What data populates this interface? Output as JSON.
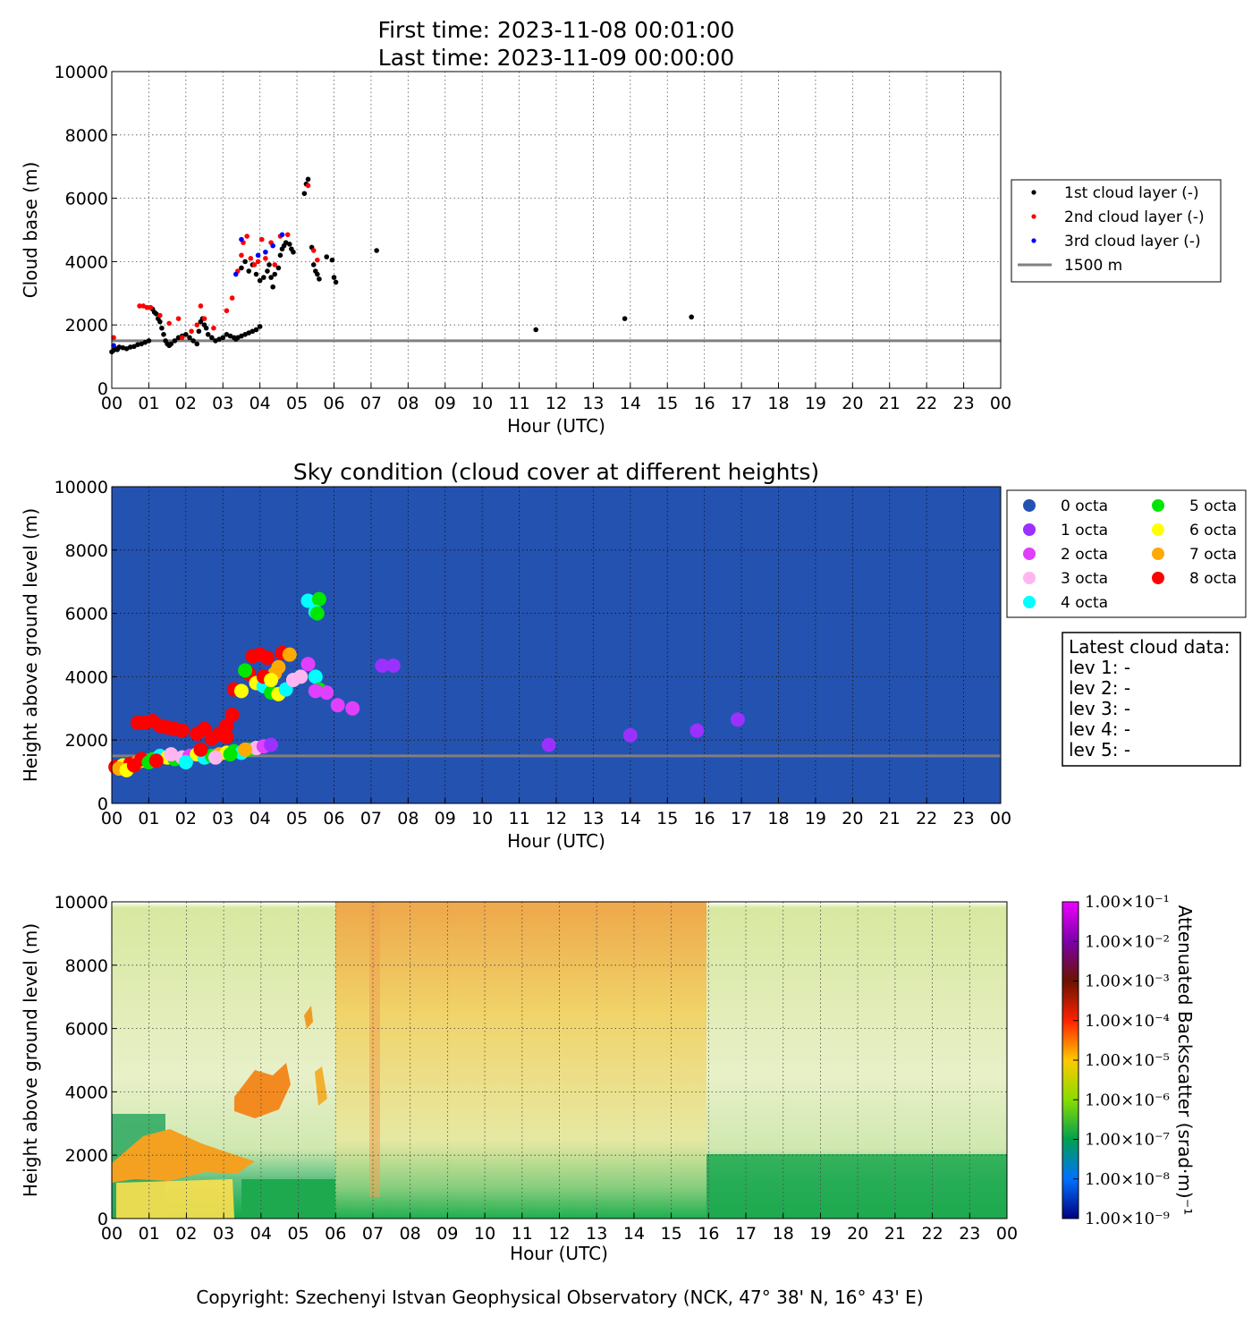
{
  "header": {
    "first_time": "First time: 2023-11-08 00:01:00",
    "last_time": "Last time: 2023-11-09 00:00:00"
  },
  "copyright": "Copyright: Szechenyi Istvan Geophysical Observatory (NCK, 47° 38' N, 16° 43' E)",
  "colors": {
    "layer1": "#000000",
    "layer2": "#ff0000",
    "layer3": "#0000ff",
    "ref_line": "#808080",
    "sky_bg": "#2452b0",
    "octa": [
      "#2452b0",
      "#9b30ff",
      "#e040fb",
      "#ffb6f0",
      "#00ffff",
      "#00e600",
      "#ffff00",
      "#ffaa00",
      "#ff0000"
    ]
  },
  "chart_data": [
    {
      "type": "scatter",
      "title": "",
      "xlabel": "Hour (UTC)",
      "ylabel": "Cloud base (m)",
      "xlim": [
        0,
        24
      ],
      "ylim": [
        0,
        10000
      ],
      "x_ticks": [
        "00",
        "01",
        "02",
        "03",
        "04",
        "05",
        "06",
        "07",
        "08",
        "09",
        "10",
        "11",
        "12",
        "13",
        "14",
        "15",
        "16",
        "17",
        "18",
        "19",
        "20",
        "21",
        "22",
        "23",
        "00"
      ],
      "y_ticks": [
        0,
        2000,
        4000,
        6000,
        8000,
        10000
      ],
      "grid": true,
      "legend_position": "outside-right",
      "reference_line": {
        "name": "1500 m",
        "y": 1500
      },
      "series": [
        {
          "name": "1st cloud layer (-)",
          "points": [
            [
              0.0,
              1150
            ],
            [
              0.05,
              1200
            ],
            [
              0.1,
              1250
            ],
            [
              0.15,
              1220
            ],
            [
              0.2,
              1300
            ],
            [
              0.3,
              1280
            ],
            [
              0.4,
              1250
            ],
            [
              0.5,
              1300
            ],
            [
              0.6,
              1320
            ],
            [
              0.7,
              1380
            ],
            [
              0.8,
              1400
            ],
            [
              0.9,
              1450
            ],
            [
              1.0,
              1500
            ],
            [
              1.1,
              2500
            ],
            [
              1.15,
              2400
            ],
            [
              1.2,
              2350
            ],
            [
              1.25,
              2200
            ],
            [
              1.3,
              2100
            ],
            [
              1.35,
              1900
            ],
            [
              1.4,
              1700
            ],
            [
              1.45,
              1500
            ],
            [
              1.5,
              1400
            ],
            [
              1.55,
              1350
            ],
            [
              1.6,
              1400
            ],
            [
              1.7,
              1500
            ],
            [
              1.8,
              1600
            ],
            [
              1.9,
              1650
            ],
            [
              2.0,
              1700
            ],
            [
              2.1,
              1600
            ],
            [
              2.2,
              1500
            ],
            [
              2.3,
              1400
            ],
            [
              2.35,
              1800
            ],
            [
              2.4,
              2100
            ],
            [
              2.45,
              2200
            ],
            [
              2.5,
              2000
            ],
            [
              2.55,
              1900
            ],
            [
              2.6,
              1700
            ],
            [
              2.7,
              1600
            ],
            [
              2.8,
              1500
            ],
            [
              2.9,
              1550
            ],
            [
              3.0,
              1600
            ],
            [
              3.1,
              1700
            ],
            [
              3.2,
              1650
            ],
            [
              3.3,
              1600
            ],
            [
              3.35,
              1550
            ],
            [
              3.4,
              1600
            ],
            [
              3.5,
              1650
            ],
            [
              3.6,
              1700
            ],
            [
              3.7,
              1750
            ],
            [
              3.8,
              1800
            ],
            [
              3.9,
              1850
            ],
            [
              4.0,
              1950
            ],
            [
              3.5,
              3800
            ],
            [
              3.6,
              4000
            ],
            [
              3.7,
              3700
            ],
            [
              3.8,
              3900
            ],
            [
              3.9,
              3600
            ],
            [
              4.0,
              3400
            ],
            [
              4.1,
              3500
            ],
            [
              4.2,
              3700
            ],
            [
              4.25,
              3900
            ],
            [
              4.3,
              3500
            ],
            [
              4.35,
              3200
            ],
            [
              4.4,
              3600
            ],
            [
              4.5,
              3800
            ],
            [
              4.55,
              4200
            ],
            [
              4.6,
              4400
            ],
            [
              4.65,
              4500
            ],
            [
              4.7,
              4600
            ],
            [
              4.8,
              4550
            ],
            [
              4.85,
              4400
            ],
            [
              4.9,
              4300
            ],
            [
              5.2,
              6150
            ],
            [
              5.25,
              6450
            ],
            [
              5.3,
              6600
            ],
            [
              5.4,
              4450
            ],
            [
              5.45,
              3900
            ],
            [
              5.5,
              3700
            ],
            [
              5.55,
              3600
            ],
            [
              5.6,
              3450
            ],
            [
              5.8,
              4150
            ],
            [
              5.95,
              4050
            ],
            [
              6.0,
              3500
            ],
            [
              6.05,
              3350
            ],
            [
              7.15,
              4350
            ],
            [
              11.45,
              1850
            ],
            [
              13.85,
              2200
            ],
            [
              15.65,
              2250
            ]
          ]
        },
        {
          "name": "2nd cloud layer (-)",
          "points": [
            [
              0.05,
              1600
            ],
            [
              0.75,
              2600
            ],
            [
              0.85,
              2600
            ],
            [
              0.95,
              2550
            ],
            [
              1.05,
              2550
            ],
            [
              1.3,
              2300
            ],
            [
              1.55,
              2050
            ],
            [
              1.8,
              2200
            ],
            [
              1.9,
              1600
            ],
            [
              2.15,
              1800
            ],
            [
              2.3,
              2000
            ],
            [
              2.4,
              2600
            ],
            [
              2.5,
              2200
            ],
            [
              2.75,
              1900
            ],
            [
              3.1,
              2450
            ],
            [
              3.25,
              2850
            ],
            [
              3.4,
              3700
            ],
            [
              3.5,
              4200
            ],
            [
              3.55,
              4600
            ],
            [
              3.65,
              4800
            ],
            [
              3.75,
              4100
            ],
            [
              3.85,
              3900
            ],
            [
              3.95,
              4000
            ],
            [
              4.05,
              4700
            ],
            [
              4.15,
              4100
            ],
            [
              4.3,
              4600
            ],
            [
              4.4,
              3900
            ],
            [
              4.55,
              4800
            ],
            [
              4.75,
              4850
            ],
            [
              5.3,
              6400
            ],
            [
              5.45,
              4350
            ],
            [
              5.55,
              4050
            ]
          ]
        },
        {
          "name": "3rd cloud layer (-)",
          "points": [
            [
              0.05,
              1350
            ],
            [
              3.35,
              3600
            ],
            [
              3.5,
              4700
            ],
            [
              3.95,
              4200
            ],
            [
              4.15,
              4300
            ],
            [
              4.35,
              4500
            ],
            [
              4.6,
              4850
            ]
          ]
        }
      ]
    },
    {
      "type": "scatter",
      "title": "Sky condition (cloud cover at different heights)",
      "xlabel": "Hour (UTC)",
      "ylabel": "Height above ground level (m)",
      "xlim": [
        0,
        24
      ],
      "ylim": [
        0,
        10000
      ],
      "x_ticks": [
        "00",
        "01",
        "02",
        "03",
        "04",
        "05",
        "06",
        "07",
        "08",
        "09",
        "10",
        "11",
        "12",
        "13",
        "14",
        "15",
        "16",
        "17",
        "18",
        "19",
        "20",
        "21",
        "22",
        "23",
        "00"
      ],
      "y_ticks": [
        0,
        2000,
        4000,
        6000,
        8000,
        10000
      ],
      "grid": true,
      "legend_position": "outside-right",
      "reference_line": {
        "name": "1500 m",
        "y": 1500
      },
      "legend": [
        "0 octa",
        "1 octa",
        "2 octa",
        "3 octa",
        "4 octa",
        "5 octa",
        "6 octa",
        "7 octa",
        "8 octa"
      ],
      "points": [
        [
          0.1,
          1150,
          8
        ],
        [
          0.3,
          1200,
          6
        ],
        [
          0.5,
          1250,
          8
        ],
        [
          0.7,
          1300,
          7
        ],
        [
          0.9,
          1350,
          6
        ],
        [
          1.1,
          1400,
          5
        ],
        [
          1.3,
          1500,
          4
        ],
        [
          1.5,
          1450,
          6
        ],
        [
          1.7,
          1400,
          5
        ],
        [
          1.9,
          1450,
          3
        ],
        [
          2.1,
          1500,
          2
        ],
        [
          2.3,
          1550,
          6
        ],
        [
          2.5,
          1450,
          4
        ],
        [
          2.7,
          1500,
          5
        ],
        [
          2.9,
          1550,
          7
        ],
        [
          3.1,
          1600,
          6
        ],
        [
          3.3,
          1650,
          5
        ],
        [
          3.5,
          1600,
          4
        ],
        [
          3.7,
          1700,
          5
        ],
        [
          3.9,
          1750,
          3
        ],
        [
          4.1,
          1800,
          2
        ],
        [
          4.3,
          1850,
          1
        ],
        [
          0.2,
          1100,
          7
        ],
        [
          0.4,
          1050,
          6
        ],
        [
          0.6,
          1200,
          8
        ],
        [
          0.8,
          1400,
          8
        ],
        [
          1.0,
          1300,
          5
        ],
        [
          1.2,
          1350,
          8
        ],
        [
          1.6,
          1550,
          3
        ],
        [
          2.0,
          1300,
          4
        ],
        [
          2.4,
          1700,
          8
        ],
        [
          2.8,
          1450,
          3
        ],
        [
          3.2,
          1550,
          5
        ],
        [
          3.6,
          1700,
          7
        ],
        [
          0.7,
          2550,
          8
        ],
        [
          0.9,
          2550,
          8
        ],
        [
          1.1,
          2600,
          8
        ],
        [
          1.3,
          2450,
          8
        ],
        [
          1.5,
          2400,
          8
        ],
        [
          1.7,
          2350,
          8
        ],
        [
          1.9,
          2300,
          8
        ],
        [
          2.3,
          2200,
          8
        ],
        [
          2.5,
          2350,
          8
        ],
        [
          2.7,
          2050,
          8
        ],
        [
          2.9,
          2200,
          8
        ],
        [
          3.1,
          2450,
          8
        ],
        [
          3.25,
          2800,
          8
        ],
        [
          3.1,
          2100,
          8
        ],
        [
          3.3,
          3600,
          8
        ],
        [
          3.5,
          3550,
          6
        ],
        [
          3.7,
          4100,
          8
        ],
        [
          3.8,
          4650,
          8
        ],
        [
          4.0,
          4700,
          8
        ],
        [
          4.2,
          4600,
          8
        ],
        [
          4.4,
          4100,
          7
        ],
        [
          4.6,
          4750,
          8
        ],
        [
          4.8,
          4700,
          7
        ],
        [
          3.9,
          3800,
          6
        ],
        [
          4.1,
          3700,
          4
        ],
        [
          4.3,
          3500,
          5
        ],
        [
          4.5,
          3450,
          6
        ],
        [
          4.7,
          3600,
          4
        ],
        [
          4.9,
          3900,
          3
        ],
        [
          5.1,
          4000,
          3
        ],
        [
          5.3,
          4400,
          2
        ],
        [
          4.1,
          4000,
          8
        ],
        [
          4.5,
          4300,
          7
        ],
        [
          4.3,
          3900,
          6
        ],
        [
          3.6,
          4200,
          5
        ],
        [
          5.3,
          6400,
          4
        ],
        [
          5.6,
          6450,
          5
        ],
        [
          5.5,
          6050,
          4
        ],
        [
          5.55,
          6000,
          5
        ],
        [
          5.5,
          4000,
          4
        ],
        [
          5.6,
          3600,
          5
        ],
        [
          5.5,
          3550,
          2
        ],
        [
          5.8,
          3500,
          2
        ],
        [
          6.1,
          3100,
          2
        ],
        [
          6.5,
          3000,
          2
        ],
        [
          7.3,
          4350,
          1
        ],
        [
          7.6,
          4350,
          1
        ],
        [
          11.8,
          1850,
          1
        ],
        [
          14.0,
          2150,
          1
        ],
        [
          15.8,
          2300,
          1
        ],
        [
          16.9,
          2650,
          1
        ]
      ],
      "info_box": {
        "title": "Latest cloud data:",
        "lines": [
          "lev 1: -",
          "lev 2: -",
          "lev 3: -",
          "lev 4: -",
          "lev 5: -"
        ]
      }
    },
    {
      "type": "heatmap",
      "title": "",
      "xlabel": "Hour (UTC)",
      "ylabel": "Height above ground level (m)",
      "xlim": [
        0,
        24
      ],
      "ylim": [
        0,
        10000
      ],
      "x_ticks": [
        "00",
        "01",
        "02",
        "03",
        "04",
        "05",
        "06",
        "07",
        "08",
        "09",
        "10",
        "11",
        "12",
        "13",
        "14",
        "15",
        "16",
        "17",
        "18",
        "19",
        "20",
        "21",
        "22",
        "23",
        "00"
      ],
      "y_ticks": [
        0,
        2000,
        4000,
        6000,
        8000,
        10000
      ],
      "grid": true,
      "colorbar_label": "Attenuated Backscatter (srad·m)⁻¹",
      "colorbar_ticks": [
        "1.00×10⁻¹",
        "1.00×10⁻²",
        "1.00×10⁻³",
        "1.00×10⁻⁴",
        "1.00×10⁻⁵",
        "1.00×10⁻⁶",
        "1.00×10⁻⁷",
        "1.00×10⁻⁸",
        "1.00×10⁻⁹"
      ],
      "colorbar_stops": [
        "#ee00ff",
        "#7a00a8",
        "#6b1200",
        "#ff2200",
        "#ffc800",
        "#88dd00",
        "#00a050",
        "#0070ff",
        "#000080"
      ]
    }
  ]
}
